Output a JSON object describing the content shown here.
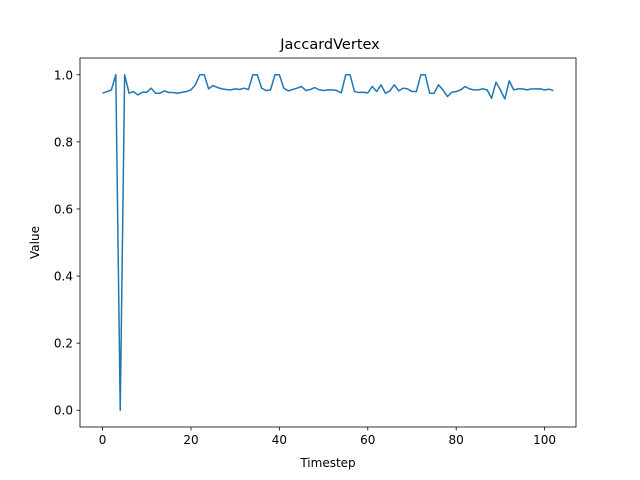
{
  "chart_data": {
    "type": "line",
    "title": "JaccardVertex",
    "xlabel": "Timestep",
    "ylabel": "Value",
    "xlim": [
      -5.1,
      107.1
    ],
    "ylim": [
      -0.05,
      1.05
    ],
    "xticks": [
      0,
      20,
      40,
      60,
      80,
      100
    ],
    "yticks": [
      0.0,
      0.2,
      0.4,
      0.6,
      0.8,
      1.0
    ],
    "xtick_labels": [
      "0",
      "20",
      "40",
      "60",
      "80",
      "100"
    ],
    "ytick_labels": [
      "0.0",
      "0.2",
      "0.4",
      "0.6",
      "0.8",
      "1.0"
    ],
    "grid": false,
    "series": [
      {
        "color": "#1f77b4",
        "x": [
          0,
          1,
          2,
          3,
          4,
          5,
          6,
          7,
          8,
          9,
          10,
          11,
          12,
          13,
          14,
          15,
          16,
          17,
          18,
          19,
          20,
          21,
          22,
          23,
          24,
          25,
          26,
          27,
          28,
          29,
          30,
          31,
          32,
          33,
          34,
          35,
          36,
          37,
          38,
          39,
          40,
          41,
          42,
          43,
          44,
          45,
          46,
          47,
          48,
          49,
          50,
          51,
          52,
          53,
          54,
          55,
          56,
          57,
          58,
          59,
          60,
          61,
          62,
          63,
          64,
          65,
          66,
          67,
          68,
          69,
          70,
          71,
          72,
          73,
          74,
          75,
          76,
          77,
          78,
          79,
          80,
          81,
          82,
          83,
          84,
          85,
          86,
          87,
          88,
          89,
          90,
          91,
          92,
          93,
          94,
          95,
          96,
          97,
          98,
          99,
          100,
          101,
          102
        ],
        "values": [
          0.945,
          0.95,
          0.955,
          1.0,
          0.0,
          1.0,
          0.945,
          0.95,
          0.94,
          0.948,
          0.948,
          0.96,
          0.945,
          0.945,
          0.952,
          0.947,
          0.947,
          0.945,
          0.948,
          0.95,
          0.955,
          0.97,
          1.0,
          1.0,
          0.958,
          0.968,
          0.962,
          0.958,
          0.956,
          0.955,
          0.958,
          0.956,
          0.96,
          0.956,
          1.0,
          1.0,
          0.96,
          0.953,
          0.955,
          1.0,
          1.0,
          0.96,
          0.952,
          0.956,
          0.96,
          0.965,
          0.953,
          0.956,
          0.962,
          0.955,
          0.953,
          0.955,
          0.955,
          0.953,
          0.946,
          1.0,
          1.0,
          0.95,
          0.947,
          0.948,
          0.946,
          0.965,
          0.95,
          0.97,
          0.945,
          0.952,
          0.97,
          0.952,
          0.96,
          0.958,
          0.95,
          0.95,
          1.0,
          1.0,
          0.945,
          0.945,
          0.97,
          0.955,
          0.935,
          0.948,
          0.95,
          0.955,
          0.965,
          0.958,
          0.955,
          0.955,
          0.958,
          0.955,
          0.93,
          0.978,
          0.955,
          0.928,
          0.982,
          0.955,
          0.958,
          0.958,
          0.955,
          0.958,
          0.958,
          0.958,
          0.955,
          0.957,
          0.953
        ]
      }
    ]
  }
}
